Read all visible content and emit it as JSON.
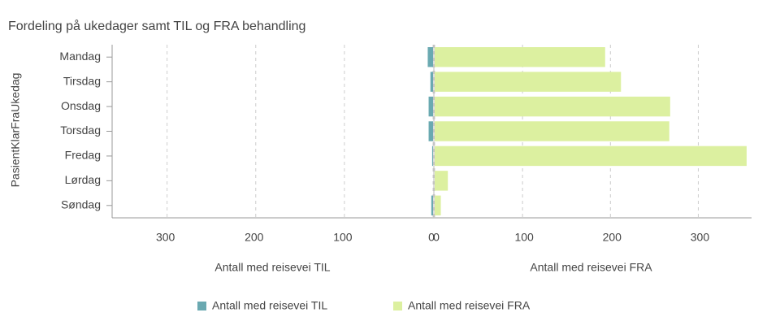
{
  "chart_data": {
    "type": "butterfly-bar",
    "title": "Fordeling på ukedager samt TIL og FRA behandling",
    "ylabel": "PasientKlarFraUkedag",
    "categories": [
      "Mandag",
      "Tirsdag",
      "Onsdag",
      "Torsdag",
      "Fredag",
      "Lørdag",
      "Søndag"
    ],
    "grid": true,
    "series": [
      {
        "name": "Antall med reisevei TIL",
        "color": "#6aa9b1",
        "values": [
          6,
          3,
          5,
          5,
          1,
          0,
          2
        ],
        "xlabel": "Antall med reisevei TIL",
        "xlim": [
          0,
          362
        ],
        "xticks": [
          0,
          100,
          200,
          300
        ],
        "reversed": true
      },
      {
        "name": "Antall med reisevei FRA",
        "color": "#dcf0a0",
        "values": [
          194,
          212,
          268,
          267,
          355,
          15,
          7
        ],
        "xlabel": "Antall med reisevei FRA",
        "xlim": [
          0,
          356
        ],
        "xticks": [
          0,
          100,
          200,
          300
        ],
        "reversed": false
      }
    ]
  }
}
